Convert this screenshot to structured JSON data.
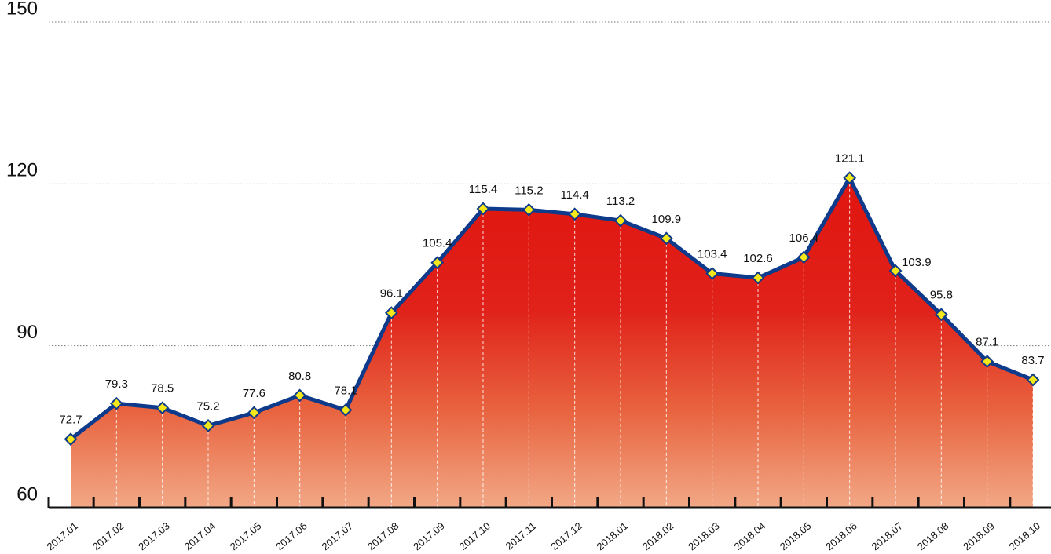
{
  "chart_data": {
    "type": "area",
    "categories": [
      "2017.01",
      "2017.02",
      "2017.03",
      "2017.04",
      "2017.05",
      "2017.06",
      "2017.07",
      "2017.08",
      "2017.09",
      "2017.10",
      "2017.11",
      "2017.12",
      "2018.01",
      "2018.02",
      "2018.03",
      "2018.04",
      "2018.05",
      "2018.06",
      "2018.07",
      "2018.08",
      "2018.09",
      "2018.10"
    ],
    "values": [
      72.7,
      79.3,
      78.5,
      75.2,
      77.6,
      80.8,
      78.1,
      96.1,
      105.4,
      115.4,
      115.2,
      114.4,
      113.2,
      109.9,
      103.4,
      102.6,
      106.4,
      121.1,
      103.9,
      95.8,
      87.1,
      83.7
    ],
    "color": "#0d3a8a",
    "ylim": [
      60,
      150
    ],
    "yticks": [
      60,
      90,
      120,
      150
    ],
    "grid": true
  }
}
